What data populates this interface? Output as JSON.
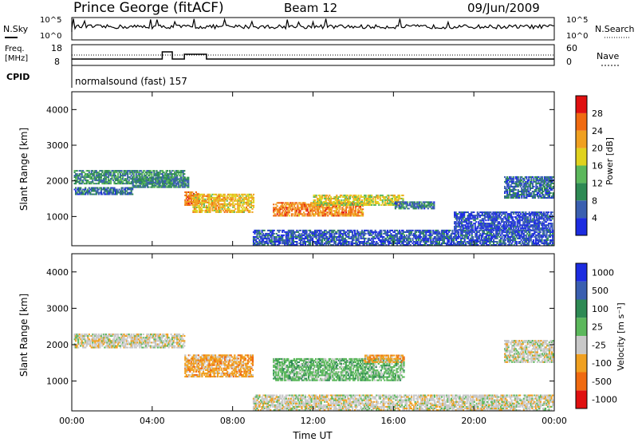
{
  "header": {
    "station": "Prince George (fitACF)",
    "beam": "Beam 12",
    "date": "09/Jun/2009"
  },
  "noise_panel": {
    "left_label": "N.Sky",
    "left_ticks": [
      "10^5",
      "10^0"
    ],
    "right_ticks": [
      "10^5",
      "10^0"
    ],
    "right_label": "N.Search"
  },
  "freq_panel": {
    "left_label_top": "Freq.",
    "left_label_bottom": "[MHz]",
    "left_ticks": [
      "18",
      "8"
    ],
    "right_ticks": [
      "60",
      "0"
    ],
    "right_label": "Nave"
  },
  "cpid_panel": {
    "label": "CPID",
    "program": "normalsound (fast) 157"
  },
  "chart_data": [
    {
      "type": "heatmap",
      "name": "power",
      "ylabel": "Slant Range [km]",
      "ylim": [
        180,
        4500
      ],
      "yticks": [
        1000,
        2000,
        3000,
        4000
      ],
      "x_ticks": [
        "00:00",
        "04:00",
        "08:00",
        "12:00",
        "16:00",
        "20:00",
        "00:00"
      ],
      "xlim_hours": [
        0,
        24
      ],
      "colorbar": {
        "label": "Power [dB]",
        "range": [
          0,
          32
        ],
        "ticks": [
          "4",
          "8",
          "12",
          "16",
          "20",
          "24",
          "28"
        ],
        "colors": [
          "#1c2ce0",
          "#3a5fb0",
          "#2e8a54",
          "#5cb85c",
          "#e0d21e",
          "#f0a020",
          "#f06a10",
          "#e01010"
        ]
      },
      "echo_regions": [
        {
          "t": [
            0.1,
            5.6
          ],
          "range": [
            1900,
            2300
          ],
          "level": 12
        },
        {
          "t": [
            0.1,
            3.0
          ],
          "range": [
            1600,
            1800
          ],
          "level": 9
        },
        {
          "t": [
            3.0,
            5.8
          ],
          "range": [
            1800,
            2100
          ],
          "level": 11
        },
        {
          "t": [
            5.6,
            6.3
          ],
          "range": [
            1300,
            1700
          ],
          "level": 26
        },
        {
          "t": [
            6.0,
            9.0
          ],
          "range": [
            1100,
            1600
          ],
          "level": 22
        },
        {
          "t": [
            10.0,
            14.5
          ],
          "range": [
            1000,
            1400
          ],
          "level": 26
        },
        {
          "t": [
            12.0,
            16.5
          ],
          "range": [
            1300,
            1600
          ],
          "level": 20
        },
        {
          "t": [
            16.0,
            18.0
          ],
          "range": [
            1200,
            1400
          ],
          "level": 10
        },
        {
          "t": [
            9.0,
            23.9
          ],
          "range": [
            180,
            600
          ],
          "level": 7
        },
        {
          "t": [
            19.0,
            23.9
          ],
          "range": [
            600,
            1100
          ],
          "level": 6
        },
        {
          "t": [
            21.5,
            23.9
          ],
          "range": [
            1500,
            2100
          ],
          "level": 9
        }
      ]
    },
    {
      "type": "heatmap",
      "name": "velocity",
      "ylabel": "Slant Range [km]",
      "ylim": [
        180,
        4500
      ],
      "yticks": [
        1000,
        2000,
        3000,
        4000
      ],
      "x_ticks": [
        "00:00",
        "04:00",
        "08:00",
        "12:00",
        "16:00",
        "20:00",
        "00:00"
      ],
      "xlabel": "Time UT",
      "xlim_hours": [
        0,
        24
      ],
      "colorbar": {
        "label": "Velocity [m s⁻¹]",
        "ticks": [
          "1000",
          "500",
          "100",
          "25",
          "-25",
          "-100",
          "-500",
          "-1000"
        ],
        "colors": [
          "#1c2ce0",
          "#3a5fb0",
          "#2e8a54",
          "#5cb85c",
          "#c8c8c8",
          "#f0a020",
          "#f06a10",
          "#e01010"
        ]
      },
      "echo_regions": [
        {
          "t": [
            0.1,
            5.6
          ],
          "range": [
            1900,
            2300
          ],
          "velocity": 0
        },
        {
          "t": [
            5.6,
            9.0
          ],
          "range": [
            1100,
            1700
          ],
          "velocity": -150
        },
        {
          "t": [
            10.0,
            16.5
          ],
          "range": [
            1000,
            1600
          ],
          "velocity": 80
        },
        {
          "t": [
            14.5,
            16.5
          ],
          "range": [
            1500,
            1700
          ],
          "velocity": -150
        },
        {
          "t": [
            9.0,
            23.9
          ],
          "range": [
            180,
            600
          ],
          "velocity": 10
        },
        {
          "t": [
            21.5,
            23.9
          ],
          "range": [
            1500,
            2100
          ],
          "velocity": 0
        }
      ]
    }
  ]
}
